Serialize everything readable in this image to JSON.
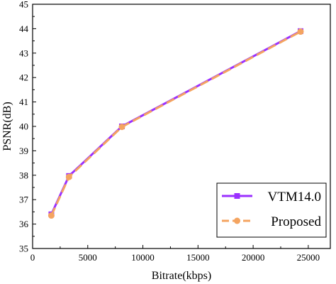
{
  "chart_data": {
    "type": "line",
    "title": "",
    "xlabel": "Bitrate(kbps)",
    "ylabel": "PSNR(dB)",
    "xlim": [
      0,
      27000
    ],
    "ylim": [
      35,
      45
    ],
    "xticks": [
      0,
      5000,
      10000,
      15000,
      20000,
      25000
    ],
    "yticks": [
      35,
      36,
      37,
      38,
      39,
      40,
      41,
      42,
      43,
      44,
      45
    ],
    "grid": false,
    "legend_position": "bottom-right",
    "series": [
      {
        "name": "VTM14.0",
        "color": "#9b30ff",
        "marker": "square",
        "line_style": "solid",
        "x": [
          1700,
          3300,
          8100,
          24300
        ],
        "y": [
          36.4,
          37.97,
          40.0,
          43.9
        ]
      },
      {
        "name": "Proposed",
        "color": "#f4a460",
        "marker": "circle",
        "line_style": "dashed",
        "x": [
          1700,
          3300,
          8100,
          24300
        ],
        "y": [
          36.35,
          37.93,
          39.98,
          43.88
        ]
      }
    ]
  }
}
